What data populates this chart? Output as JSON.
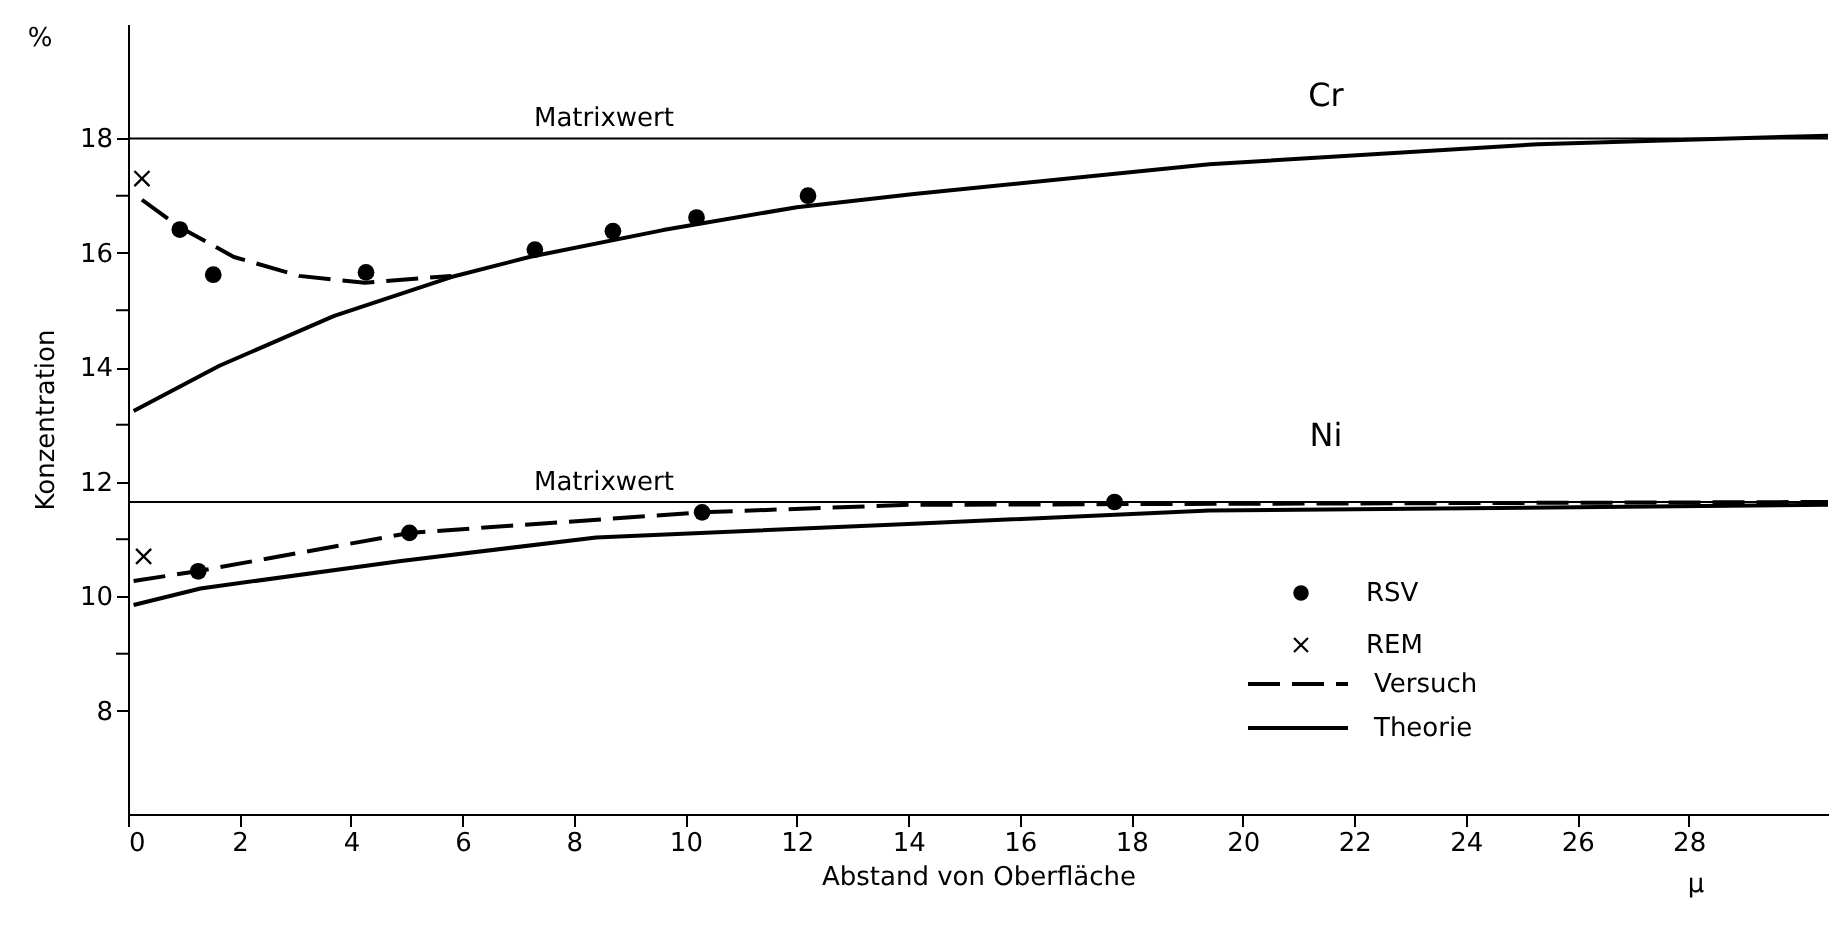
{
  "chart_data": {
    "type": "line",
    "xlabel": "Abstand von Oberfläche",
    "ylabel": "Konzentration",
    "xlim": [
      0,
      30.5
    ],
    "ylim": [
      6.2,
      20
    ],
    "xticks": [
      0,
      2,
      4,
      6,
      8,
      10,
      12,
      14,
      16,
      18,
      20,
      22,
      24,
      26,
      28
    ],
    "yticks": [
      8,
      {
        "value": 9,
        "label": null
      },
      10,
      {
        "value": 11,
        "label": null
      },
      12,
      {
        "value": 13,
        "label": null
      },
      14,
      {
        "value": 15,
        "label": null
      },
      16,
      {
        "value": 17,
        "label": null
      },
      18
    ],
    "grid": false,
    "legend": "right",
    "ref_lines": [
      {
        "axis": "y",
        "value": 18,
        "label": "Matrixwert",
        "color": "#000000"
      },
      {
        "axis": "y",
        "value": 11.65,
        "label": "Matrixwert",
        "color": "#000000"
      }
    ],
    "annotations": [
      "%",
      "μ",
      "Cr",
      "Ni"
    ],
    "series": [
      {
        "name": "RSV",
        "type": "scatter",
        "marker": "circle",
        "color": "#000000",
        "x": [
          0.93,
          1.53,
          4.27,
          7.3,
          8.7,
          10.2,
          12.2,
          1.26,
          5.05,
          10.3,
          17.7
        ],
        "values": [
          16.41,
          15.62,
          15.66,
          16.06,
          16.38,
          16.62,
          17.0,
          10.44,
          11.11,
          11.47,
          11.65
        ]
      },
      {
        "name": "REM",
        "type": "scatter",
        "marker": "cross",
        "color": "#000000",
        "x": [
          0.25,
          0.28
        ],
        "values": [
          17.3,
          10.7
        ]
      },
      {
        "name": "Versuch",
        "line_style": "dashed",
        "color": "#000000",
        "x": [
          0.25,
          0.93,
          1.9,
          3.07,
          4.25,
          5.8,
          null,
          0.1,
          1.3,
          5.05,
          10.3,
          14.0,
          20.0,
          30.5
        ],
        "values": [
          16.93,
          16.45,
          15.93,
          15.6,
          15.48,
          15.6,
          null,
          10.27,
          10.45,
          11.11,
          11.47,
          11.6,
          11.62,
          11.65
        ]
      },
      {
        "name": "Theorie",
        "line_style": "solid",
        "color": "#000000",
        "x": [
          0.1,
          1.64,
          3.7,
          5.8,
          7.2,
          9.6,
          12.0,
          14.1,
          19.4,
          25.3,
          30.5,
          null,
          0.1,
          1.3,
          4.9,
          8.4,
          14.1,
          19.4,
          30.5
        ],
        "values": [
          13.24,
          14.03,
          14.9,
          15.58,
          15.93,
          16.4,
          16.8,
          17.03,
          17.55,
          17.9,
          18.05,
          null,
          9.85,
          10.14,
          10.62,
          11.03,
          11.27,
          11.5,
          11.6
        ]
      }
    ]
  }
}
